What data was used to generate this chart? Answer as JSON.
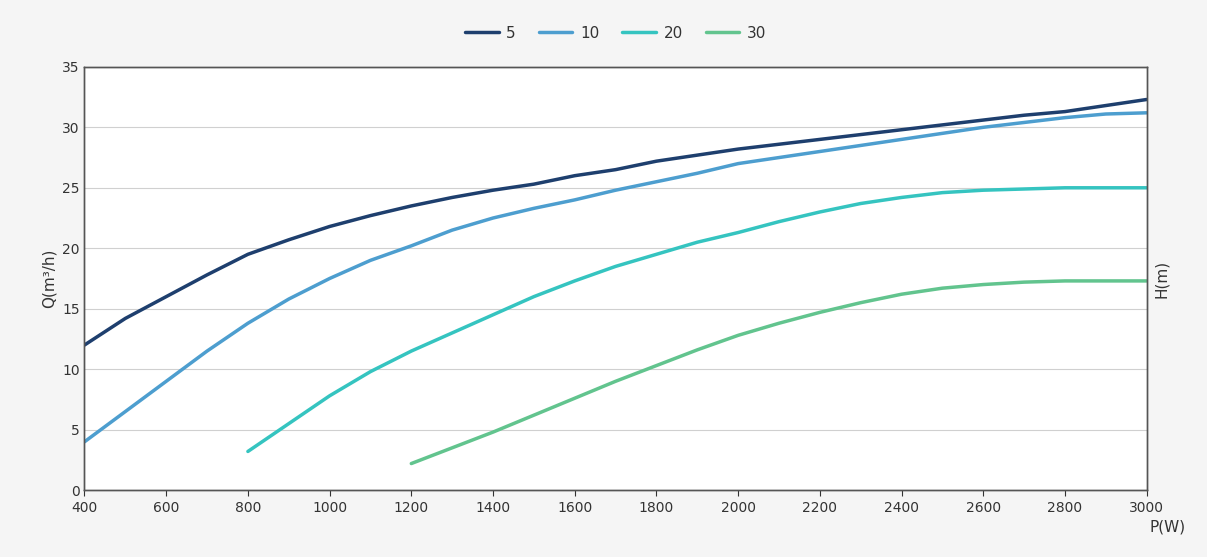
{
  "title": "",
  "xlabel": "P(W)",
  "ylabel_left": "Q(m³/h)",
  "ylabel_right": "H(m)",
  "xlim": [
    400,
    3000
  ],
  "ylim": [
    0,
    35
  ],
  "xticks": [
    400,
    600,
    800,
    1000,
    1200,
    1400,
    1600,
    1800,
    2000,
    2200,
    2400,
    2600,
    2800,
    3000
  ],
  "yticks": [
    0,
    5,
    10,
    15,
    20,
    25,
    30,
    35
  ],
  "series": [
    {
      "label": "5",
      "color": "#1e3f6e",
      "linewidth": 2.5,
      "x": [
        400,
        500,
        600,
        700,
        800,
        900,
        1000,
        1100,
        1200,
        1300,
        1400,
        1500,
        1600,
        1700,
        1800,
        1900,
        2000,
        2100,
        2200,
        2300,
        2400,
        2500,
        2600,
        2700,
        2800,
        2900,
        3000
      ],
      "y": [
        12.0,
        14.2,
        16.0,
        17.8,
        19.5,
        20.7,
        21.8,
        22.7,
        23.5,
        24.2,
        24.8,
        25.3,
        26.0,
        26.5,
        27.2,
        27.7,
        28.2,
        28.6,
        29.0,
        29.4,
        29.8,
        30.2,
        30.6,
        31.0,
        31.3,
        31.8,
        32.3
      ]
    },
    {
      "label": "10",
      "color": "#4d9ecf",
      "linewidth": 2.5,
      "x": [
        400,
        500,
        600,
        700,
        800,
        900,
        1000,
        1100,
        1200,
        1300,
        1400,
        1500,
        1600,
        1700,
        1800,
        1900,
        2000,
        2100,
        2200,
        2300,
        2400,
        2500,
        2600,
        2700,
        2800,
        2900,
        3000
      ],
      "y": [
        4.0,
        6.5,
        9.0,
        11.5,
        13.8,
        15.8,
        17.5,
        19.0,
        20.2,
        21.5,
        22.5,
        23.3,
        24.0,
        24.8,
        25.5,
        26.2,
        27.0,
        27.5,
        28.0,
        28.5,
        29.0,
        29.5,
        30.0,
        30.4,
        30.8,
        31.1,
        31.2
      ]
    },
    {
      "label": "20",
      "color": "#35c4c0",
      "linewidth": 2.5,
      "x": [
        800,
        900,
        1000,
        1100,
        1200,
        1300,
        1400,
        1500,
        1600,
        1700,
        1800,
        1900,
        2000,
        2100,
        2200,
        2300,
        2400,
        2500,
        2600,
        2700,
        2800,
        2900,
        3000
      ],
      "y": [
        3.2,
        5.5,
        7.8,
        9.8,
        11.5,
        13.0,
        14.5,
        16.0,
        17.3,
        18.5,
        19.5,
        20.5,
        21.3,
        22.2,
        23.0,
        23.7,
        24.2,
        24.6,
        24.8,
        24.9,
        25.0,
        25.0,
        25.0
      ]
    },
    {
      "label": "30",
      "color": "#62c48e",
      "linewidth": 2.5,
      "x": [
        1200,
        1300,
        1400,
        1500,
        1600,
        1700,
        1800,
        1900,
        2000,
        2100,
        2200,
        2300,
        2400,
        2500,
        2600,
        2700,
        2800,
        2900,
        3000
      ],
      "y": [
        2.2,
        3.5,
        4.8,
        6.2,
        7.6,
        9.0,
        10.3,
        11.6,
        12.8,
        13.8,
        14.7,
        15.5,
        16.2,
        16.7,
        17.0,
        17.2,
        17.3,
        17.3,
        17.3
      ]
    }
  ],
  "background_color": "#f5f5f5",
  "plot_bg_color": "#ffffff",
  "grid_color": "#d0d0d0",
  "fig_width": 12.07,
  "fig_height": 5.57,
  "dpi": 100
}
